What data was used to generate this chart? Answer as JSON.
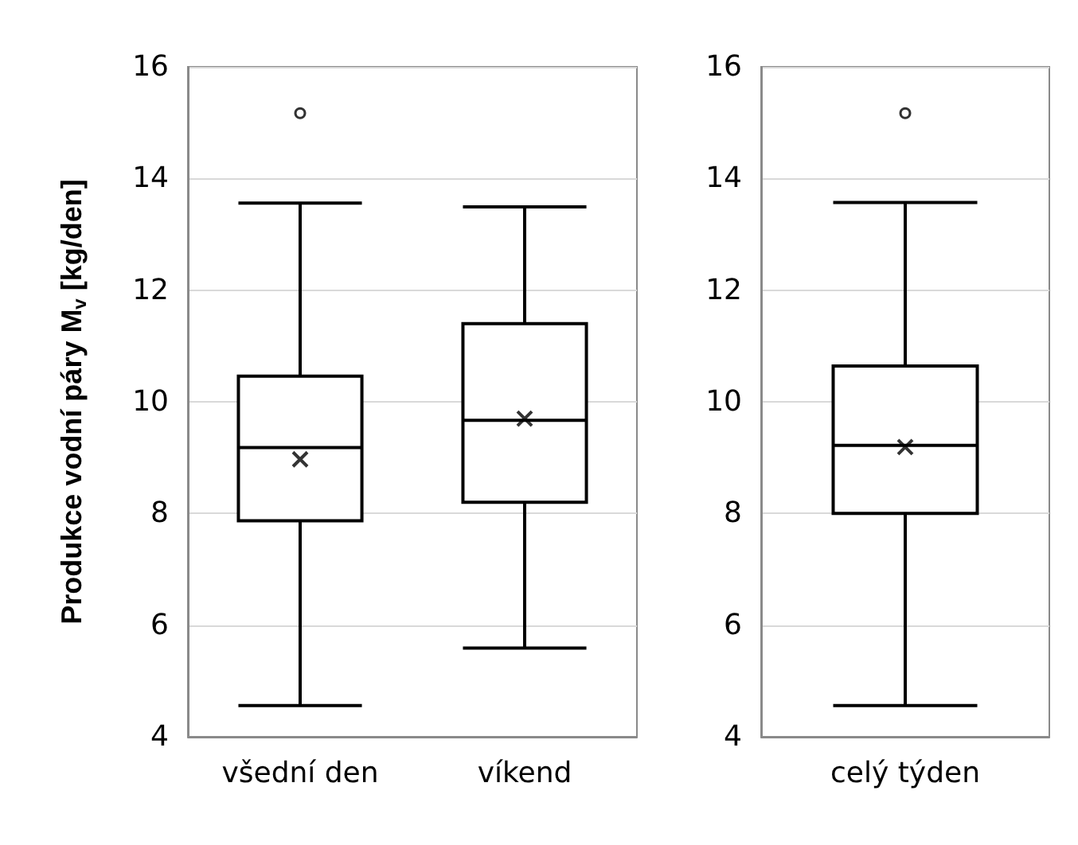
{
  "chart_data": [
    {
      "type": "box",
      "ylabel": "Produkce vodní páry M$_{v}$ [kg/den]",
      "categories": [
        "všední den",
        "víkend"
      ],
      "color": "#000000",
      "marker": "cross",
      "grid": "y",
      "ylim": [
        4,
        16
      ],
      "yticks": [
        4,
        6,
        8,
        10,
        12,
        14,
        16
      ],
      "boxes": [
        {
          "low": 4.56,
          "q1": 7.87,
          "median": 9.18,
          "q3": 10.46,
          "high": 13.56,
          "mean": 8.97,
          "outliers": [
            15.17
          ]
        },
        {
          "low": 5.59,
          "q1": 8.2,
          "median": 9.67,
          "q3": 11.4,
          "high": 13.49,
          "mean": 9.7
        }
      ]
    },
    {
      "type": "box",
      "categories": [
        "celý týden"
      ],
      "color": "#000000",
      "marker": "cross",
      "grid": "y",
      "ylim": [
        4,
        16
      ],
      "yticks": [
        4,
        6,
        8,
        10,
        12,
        14,
        16
      ],
      "boxes": [
        {
          "low": 4.56,
          "q1": 8.0,
          "median": 9.22,
          "q3": 10.64,
          "high": 13.57,
          "mean": 9.19,
          "outliers": [
            15.17
          ]
        }
      ]
    }
  ]
}
